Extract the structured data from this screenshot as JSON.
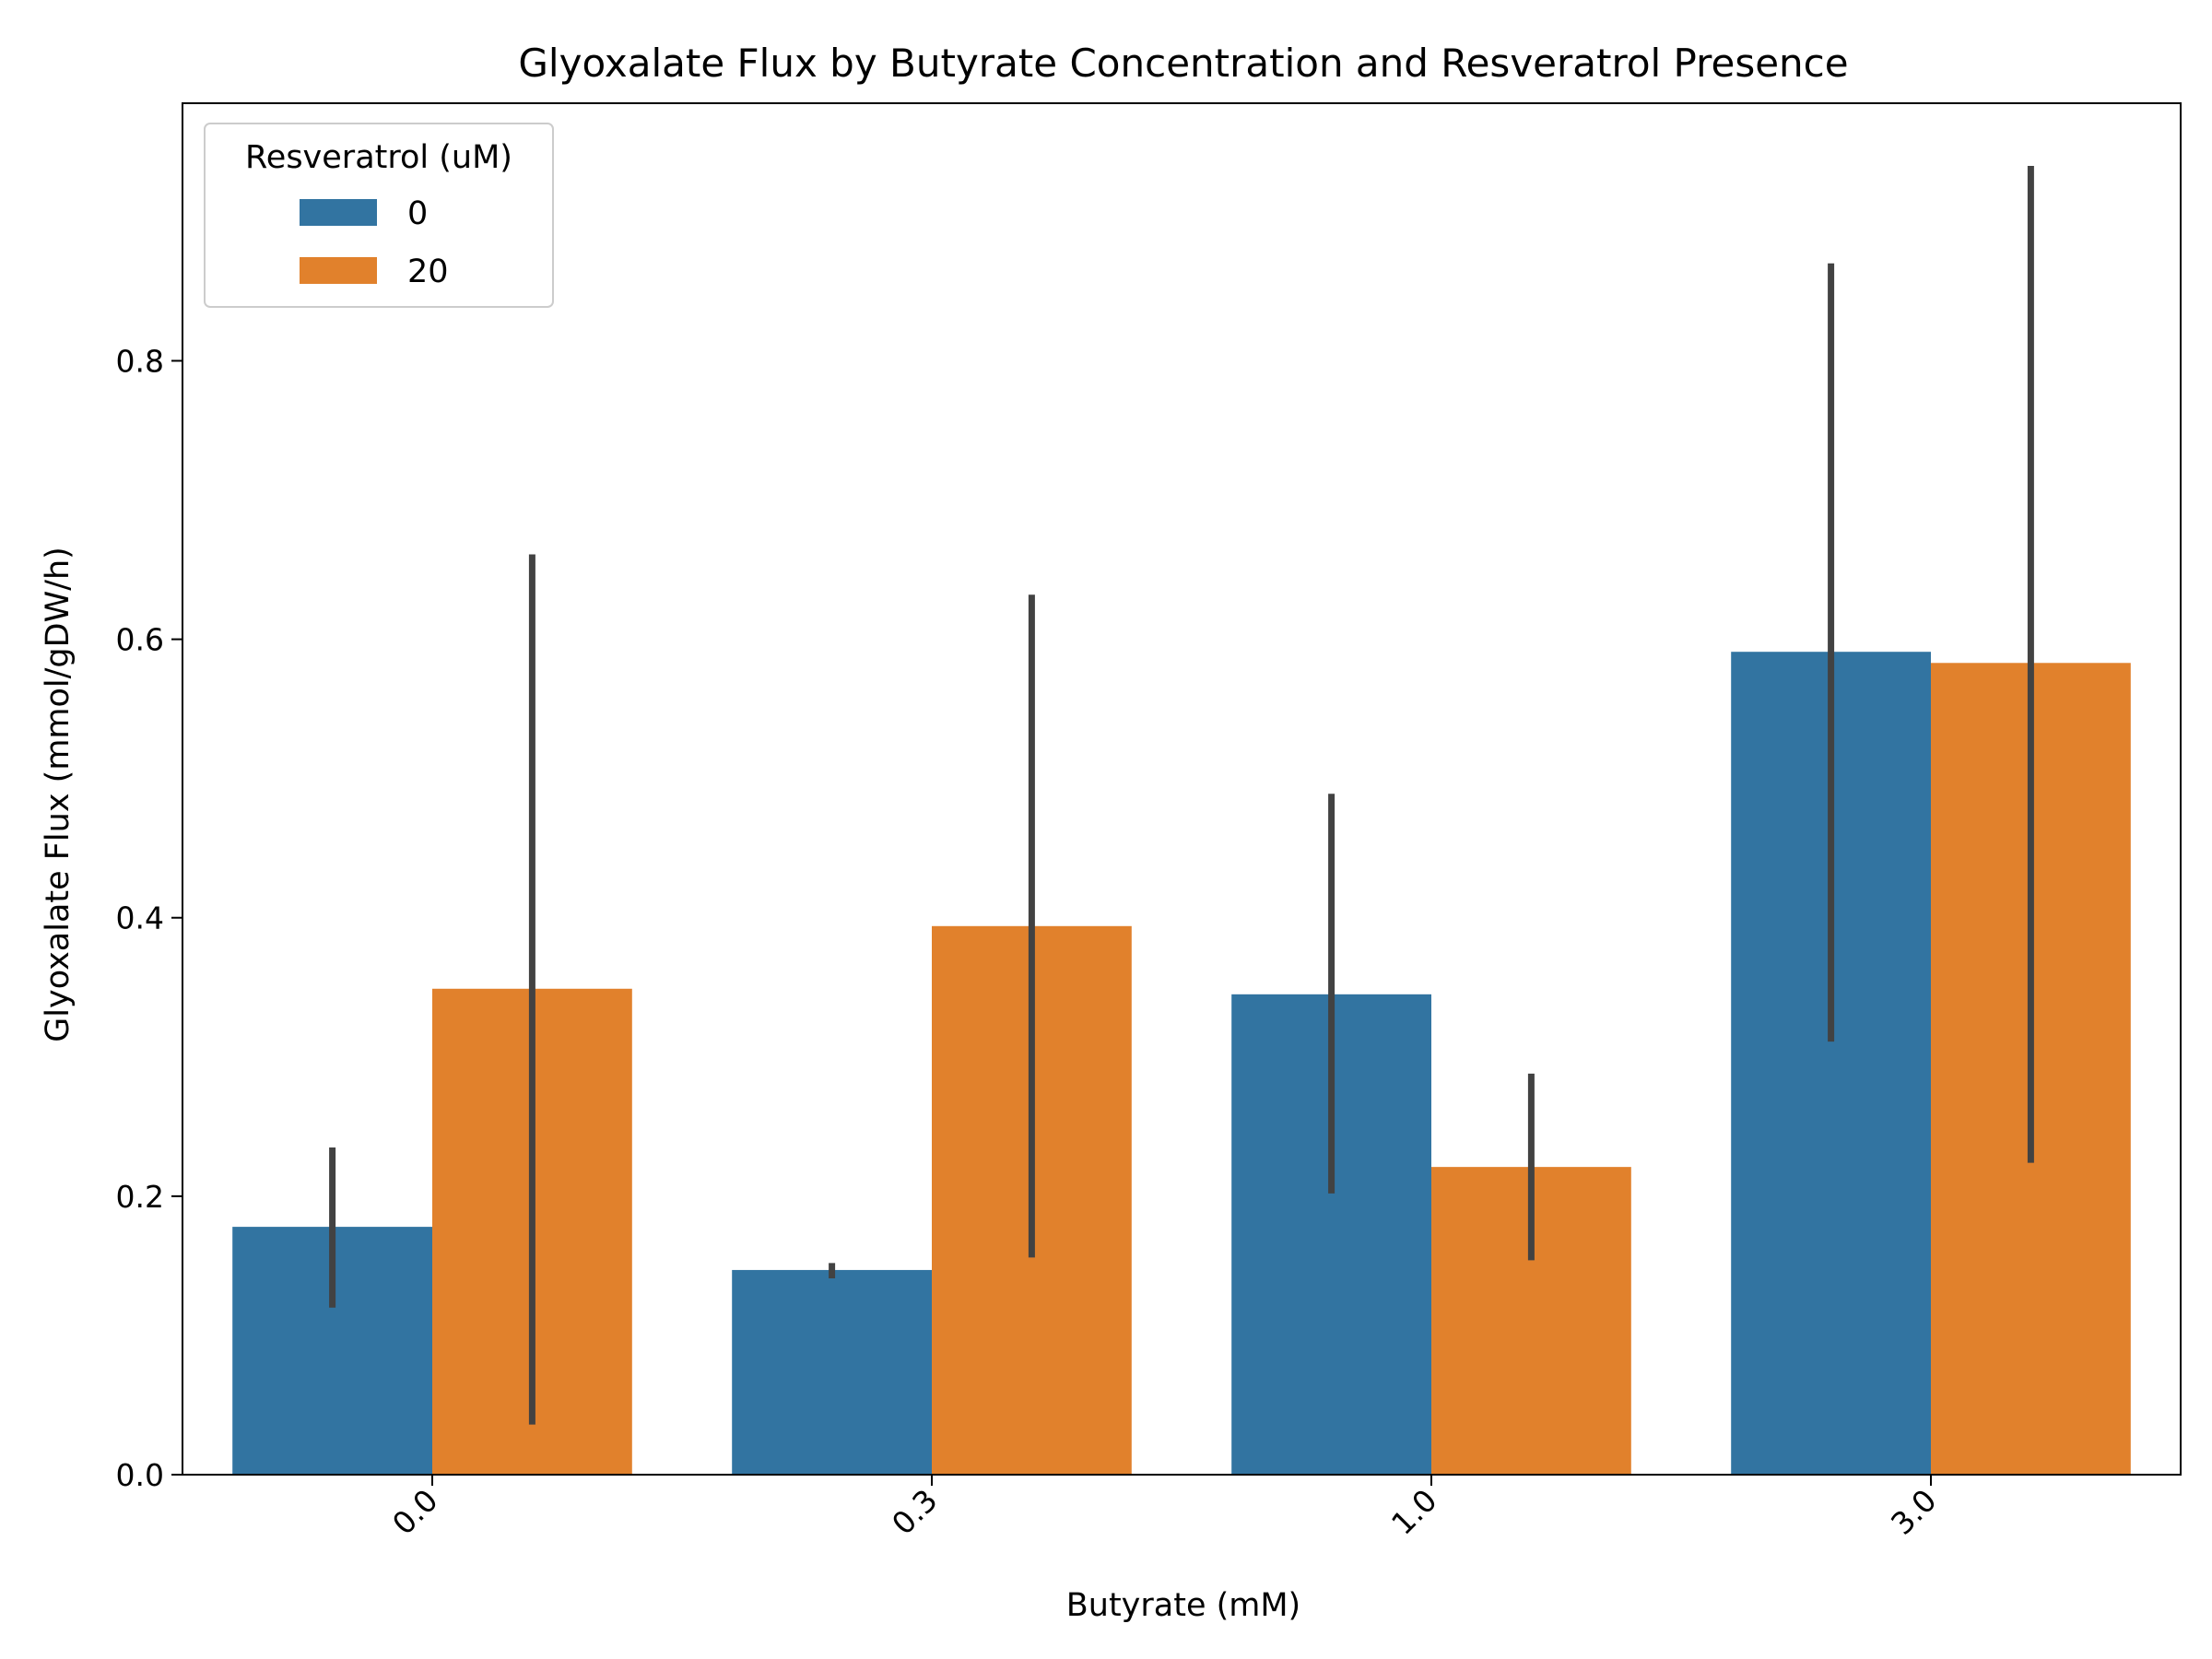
{
  "chart_data": {
    "type": "bar",
    "title": "Glyoxalate Flux by Butyrate Concentration and Resveratrol Presence",
    "xlabel": "Butyrate (mM)",
    "ylabel": "Glyoxalate Flux (mmol/gDW/h)",
    "categories": [
      "0.0",
      "0.3",
      "1.0",
      "3.0"
    ],
    "ylim": [
      0,
      0.985
    ],
    "yticks": [
      0.0,
      0.2,
      0.4,
      0.6,
      0.8
    ],
    "ytick_labels": [
      "0.0",
      "0.2",
      "0.4",
      "0.6",
      "0.8"
    ],
    "grid": false,
    "legend": {
      "title": "Resveratrol (uM)",
      "placement": "top-left"
    },
    "series": [
      {
        "name": "0",
        "color": "#3274a1",
        "values": [
          0.178,
          0.147,
          0.345,
          0.591
        ],
        "error_low": [
          0.12,
          0.141,
          0.202,
          0.311
        ],
        "error_high": [
          0.235,
          0.152,
          0.489,
          0.87
        ]
      },
      {
        "name": "20",
        "color": "#e1812c",
        "values": [
          0.349,
          0.394,
          0.221,
          0.583
        ],
        "error_low": [
          0.036,
          0.156,
          0.154,
          0.224
        ],
        "error_high": [
          0.661,
          0.632,
          0.288,
          0.94
        ]
      }
    ],
    "errorbar_color": "#424242"
  }
}
